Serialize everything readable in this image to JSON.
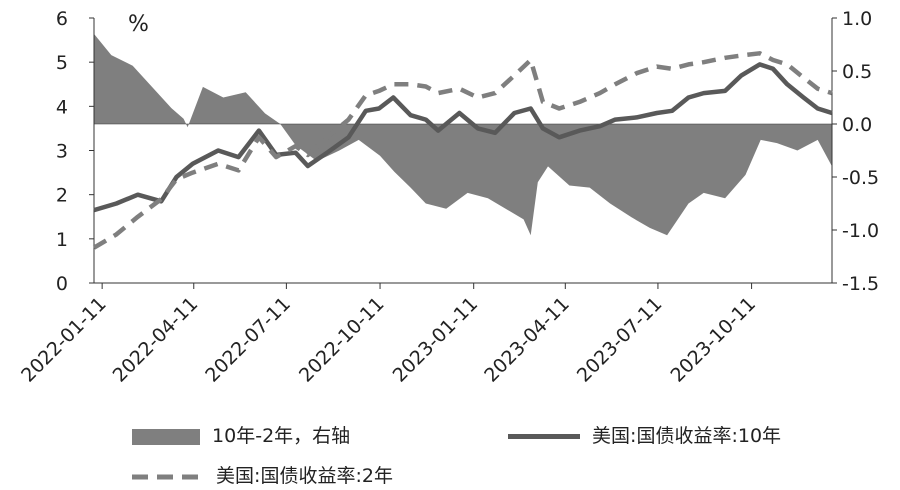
{
  "chart_data": {
    "type": "line",
    "title": "",
    "unit_label": "%",
    "xlabel": "",
    "ylabel": "",
    "x_range": [
      "2022-01-03",
      "2023-12-29"
    ],
    "x_tick_labels": [
      "2022-01-11",
      "2022-04-11",
      "2022-07-11",
      "2022-10-11",
      "2023-01-11",
      "2023-04-11",
      "2023-07-11",
      "2023-10-11"
    ],
    "y_left": {
      "min": 0,
      "max": 6,
      "ticks": [
        "0",
        "1",
        "2",
        "3",
        "4",
        "5",
        "6"
      ]
    },
    "y_right": {
      "min": -1.5,
      "max": 1.0,
      "ticks": [
        "1.0",
        "0.5",
        "0.0",
        "-0.5",
        "-1.0",
        "-1.5"
      ]
    },
    "grid": false,
    "legend_position": "bottom",
    "series": [
      {
        "name": "10年-2年，右轴",
        "type": "area",
        "axis": "right",
        "color": "#7f7f7f",
        "x": [
          "2022-01-03",
          "2022-01-20",
          "2022-02-10",
          "2022-03-01",
          "2022-03-20",
          "2022-04-01",
          "2022-04-05",
          "2022-04-20",
          "2022-05-10",
          "2022-06-01",
          "2022-06-20",
          "2022-07-05",
          "2022-07-20",
          "2022-08-10",
          "2022-09-01",
          "2022-09-20",
          "2022-10-11",
          "2022-10-25",
          "2022-11-10",
          "2022-11-25",
          "2022-12-15",
          "2023-01-05",
          "2023-01-25",
          "2023-02-15",
          "2023-03-01",
          "2023-03-08",
          "2023-03-15",
          "2023-03-25",
          "2023-04-15",
          "2023-05-05",
          "2023-05-25",
          "2023-06-15",
          "2023-07-03",
          "2023-07-20",
          "2023-08-10",
          "2023-08-25",
          "2023-09-15",
          "2023-10-05",
          "2023-10-20",
          "2023-11-05",
          "2023-11-25",
          "2023-12-15",
          "2023-12-29"
        ],
        "values": [
          0.85,
          0.65,
          0.55,
          0.35,
          0.15,
          0.05,
          -0.03,
          0.35,
          0.25,
          0.3,
          0.1,
          0.0,
          -0.2,
          -0.35,
          -0.25,
          -0.15,
          -0.3,
          -0.45,
          -0.6,
          -0.75,
          -0.8,
          -0.65,
          -0.7,
          -0.82,
          -0.9,
          -1.05,
          -0.55,
          -0.4,
          -0.58,
          -0.6,
          -0.75,
          -0.88,
          -0.98,
          -1.05,
          -0.75,
          -0.65,
          -0.7,
          -0.48,
          -0.15,
          -0.18,
          -0.25,
          -0.15,
          -0.4
        ]
      },
      {
        "name": "美国:国债收益率:10年",
        "type": "line",
        "axis": "left",
        "color": "#595959",
        "x": [
          "2022-01-03",
          "2022-01-25",
          "2022-02-15",
          "2022-03-10",
          "2022-03-25",
          "2022-04-10",
          "2022-05-05",
          "2022-05-25",
          "2022-06-14",
          "2022-07-01",
          "2022-07-20",
          "2022-08-01",
          "2022-08-20",
          "2022-09-10",
          "2022-09-27",
          "2022-10-10",
          "2022-10-24",
          "2022-11-10",
          "2022-11-25",
          "2022-12-07",
          "2022-12-28",
          "2023-01-15",
          "2023-02-01",
          "2023-02-20",
          "2023-03-08",
          "2023-03-20",
          "2023-04-05",
          "2023-04-25",
          "2023-05-15",
          "2023-05-30",
          "2023-06-20",
          "2023-07-10",
          "2023-07-25",
          "2023-08-10",
          "2023-08-25",
          "2023-09-15",
          "2023-10-01",
          "2023-10-19",
          "2023-11-01",
          "2023-11-15",
          "2023-12-01",
          "2023-12-15",
          "2023-12-29"
        ],
        "values": [
          1.65,
          1.8,
          2.0,
          1.85,
          2.4,
          2.7,
          3.0,
          2.85,
          3.45,
          2.9,
          2.95,
          2.65,
          2.95,
          3.3,
          3.9,
          3.95,
          4.2,
          3.8,
          3.7,
          3.45,
          3.85,
          3.5,
          3.4,
          3.85,
          3.95,
          3.5,
          3.3,
          3.45,
          3.55,
          3.7,
          3.75,
          3.85,
          3.9,
          4.2,
          4.3,
          4.35,
          4.7,
          4.95,
          4.85,
          4.5,
          4.2,
          3.95,
          3.85
        ]
      },
      {
        "name": "美国:国债收益率:2年",
        "type": "line",
        "style": "dashed",
        "axis": "left",
        "color": "#7f7f7f",
        "x": [
          "2022-01-03",
          "2022-01-25",
          "2022-02-15",
          "2022-03-10",
          "2022-03-25",
          "2022-04-10",
          "2022-05-05",
          "2022-05-25",
          "2022-06-14",
          "2022-07-01",
          "2022-07-20",
          "2022-08-01",
          "2022-08-20",
          "2022-09-10",
          "2022-09-27",
          "2022-10-10",
          "2022-10-24",
          "2022-11-10",
          "2022-11-25",
          "2022-12-07",
          "2022-12-28",
          "2023-01-15",
          "2023-02-01",
          "2023-02-20",
          "2023-03-08",
          "2023-03-20",
          "2023-04-05",
          "2023-04-25",
          "2023-05-15",
          "2023-05-30",
          "2023-06-20",
          "2023-07-10",
          "2023-07-25",
          "2023-08-10",
          "2023-08-25",
          "2023-09-15",
          "2023-10-01",
          "2023-10-19",
          "2023-11-01",
          "2023-11-15",
          "2023-12-01",
          "2023-12-15",
          "2023-12-29"
        ],
        "values": [
          0.8,
          1.1,
          1.5,
          1.9,
          2.35,
          2.5,
          2.7,
          2.55,
          3.3,
          2.85,
          3.1,
          2.9,
          3.3,
          3.7,
          4.25,
          4.35,
          4.5,
          4.5,
          4.45,
          4.3,
          4.4,
          4.2,
          4.3,
          4.7,
          5.05,
          4.1,
          3.95,
          4.1,
          4.3,
          4.5,
          4.75,
          4.9,
          4.85,
          4.95,
          5.0,
          5.1,
          5.15,
          5.2,
          5.05,
          4.95,
          4.65,
          4.4,
          4.3
        ]
      }
    ]
  }
}
